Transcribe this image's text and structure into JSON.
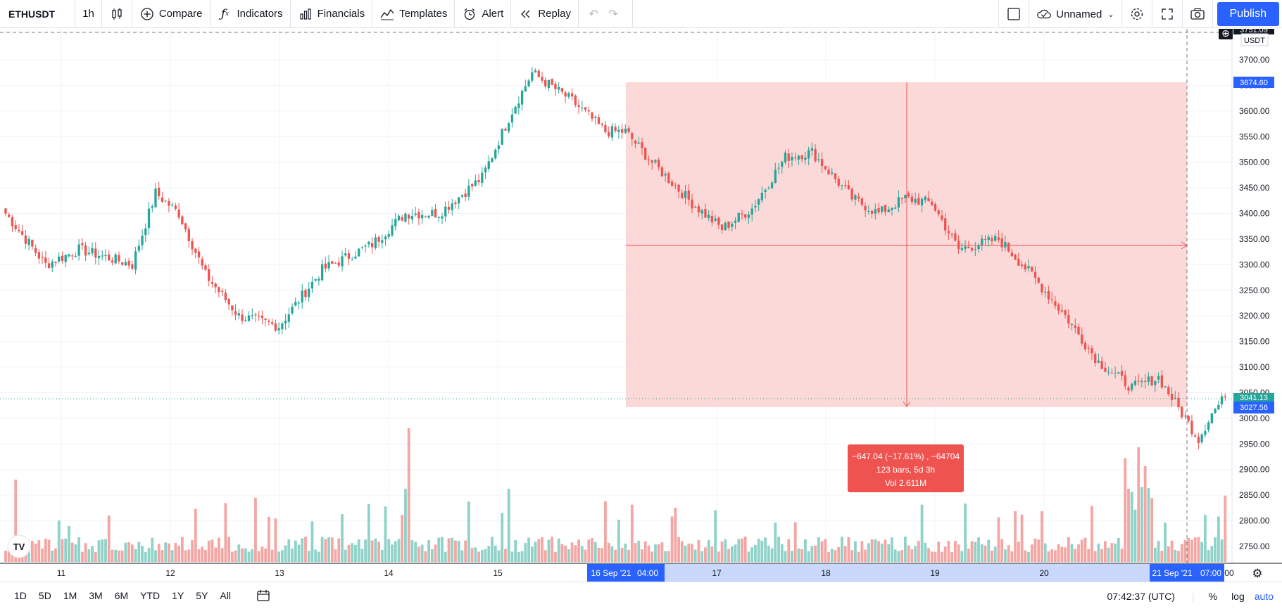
{
  "toolbar": {
    "symbol": "ETHUSDT",
    "interval": "1h",
    "chart_type_icon": "candles-icon",
    "compare_label": "Compare",
    "indicators_label": "Indicators",
    "financials_label": "Financials",
    "templates_label": "Templates",
    "alert_label": "Alert",
    "replay_label": "Replay",
    "layout_name": "Unnamed",
    "publish_label": "Publish"
  },
  "price_axis": {
    "unit_label": "USDT",
    "ticks": [
      "3700.00",
      "3650.00",
      "3600.00",
      "3550.00",
      "3500.00",
      "3450.00",
      "3400.00",
      "3350.00",
      "3300.00",
      "3250.00",
      "3200.00",
      "3150.00",
      "3100.00",
      "3050.00",
      "3000.00",
      "2950.00",
      "2900.00",
      "2850.00",
      "2800.00",
      "2750.00"
    ],
    "top_partial_label": "3751.09",
    "measure_top_label": "3674.60",
    "last_price_label": "3041.13",
    "measure_bottom_label": "3027.56",
    "last_price_partial": "3041.13"
  },
  "time_axis": {
    "labels": [
      "11",
      "12",
      "13",
      "14",
      "15",
      "17",
      "18",
      "19",
      "20"
    ],
    "range_start": "16 Sep '21",
    "range_start_time": "04:00",
    "range_end": "21 Sep '21",
    "range_end_time": "07:00",
    "axis_end_label": "00"
  },
  "measure": {
    "line1": "−647.04 (−17.61%) , −64704",
    "line2": "123 bars, 5d 3h",
    "line3": "Vol 2.611M",
    "color": "#ef5350",
    "fill_color": "#fbd9d8"
  },
  "bottom": {
    "ranges": [
      "1D",
      "5D",
      "1M",
      "3M",
      "6M",
      "YTD",
      "1Y",
      "5Y",
      "All"
    ],
    "time": "07:42:37 (UTC)",
    "percent_label": "%",
    "log_label": "log",
    "auto_label": "auto"
  },
  "colors": {
    "up": "#26a69a",
    "down": "#ef5350",
    "up_vol": "#8ed2c8",
    "down_vol": "#f3a6a3",
    "accent": "#2962ff"
  },
  "chart_data": {
    "type": "candlestick",
    "title": "",
    "series_key_points": [
      {
        "date": "Sep 10",
        "close": 3400
      },
      {
        "date": "Sep 11",
        "close": 3300
      },
      {
        "date": "Sep 12",
        "close": 3440
      },
      {
        "date": "Sep 13",
        "close": 3200
      },
      {
        "date": "Sep 14",
        "close": 3290
      },
      {
        "date": "Sep 15",
        "close": 3420
      },
      {
        "date": "Sep 16 04:00",
        "close": 3674.6
      },
      {
        "date": "Sep 17",
        "close": 3560
      },
      {
        "date": "Sep 18",
        "close": 3370
      },
      {
        "date": "Sep 18 12:00",
        "close": 3520
      },
      {
        "date": "Sep 19",
        "close": 3430
      },
      {
        "date": "Sep 20",
        "close": 3330
      },
      {
        "date": "Sep 20 12:00",
        "close": 3050
      },
      {
        "date": "Sep 21 07:00",
        "close": 3041.13
      }
    ],
    "ylim": [
      2720,
      3760
    ],
    "measure_range": {
      "high": 3674.6,
      "low": 3027.56
    }
  }
}
